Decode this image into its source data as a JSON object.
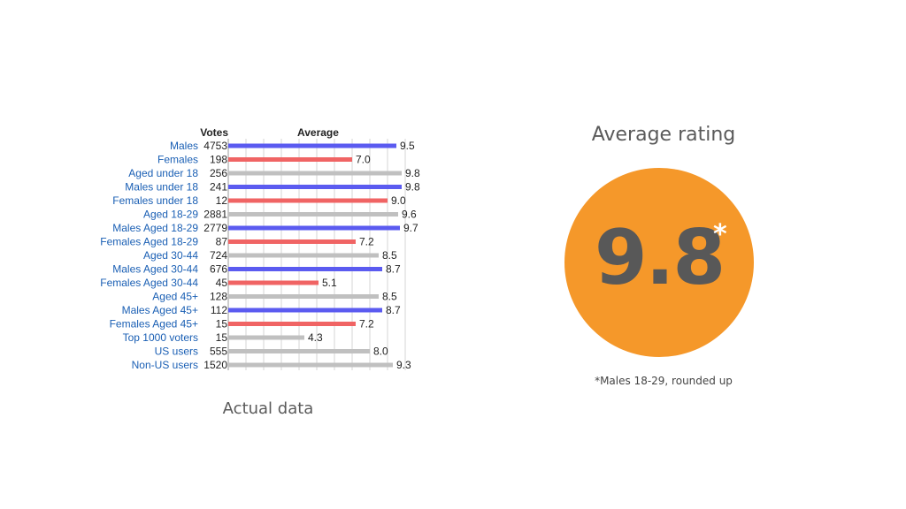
{
  "chart_data": {
    "type": "bar",
    "orientation": "horizontal",
    "headers": {
      "votes": "Votes",
      "average": "Average"
    },
    "categories": [
      "Males",
      "Females",
      "Aged under 18",
      "Males under 18",
      "Females under 18",
      "Aged 18-29",
      "Males Aged 18-29",
      "Females Aged 18-29",
      "Aged 30-44",
      "Males Aged 30-44",
      "Females Aged 30-44",
      "Aged 45+",
      "Males Aged 45+",
      "Females Aged 45+",
      "Top 1000 voters",
      "US users",
      "Non-US users"
    ],
    "votes": [
      "4753",
      "198",
      "256",
      "241",
      "12",
      "2881",
      "2779",
      "87",
      "724",
      "676",
      "45",
      "128",
      "112",
      "15",
      "15",
      "555",
      "1520"
    ],
    "values": [
      9.5,
      7.0,
      9.8,
      9.8,
      9.0,
      9.6,
      9.7,
      7.2,
      8.5,
      8.7,
      5.1,
      8.5,
      8.7,
      7.2,
      4.3,
      8.0,
      9.3
    ],
    "value_labels": [
      "9.5",
      "7.0",
      "9.8",
      "9.8",
      "9.0",
      "9.6",
      "9.7",
      "7.2",
      "8.5",
      "8.7",
      "5.1",
      "8.5",
      "8.7",
      "7.2",
      "4.3",
      "8.0",
      "9.3"
    ],
    "groups": [
      "male",
      "female",
      "all",
      "male",
      "female",
      "all",
      "male",
      "female",
      "all",
      "male",
      "female",
      "all",
      "male",
      "female",
      "all",
      "all",
      "all"
    ],
    "group_colors": {
      "male": "#5b5bf0",
      "female": "#f06464",
      "all": "#c0c0c0"
    },
    "xlim": [
      0,
      10
    ],
    "grid": true
  },
  "caption": "Actual data",
  "rating": {
    "title": "Average rating",
    "value": "9.8",
    "marker": "*",
    "footnote": "*Males 18-29, rounded up",
    "circle_color": "#f5982a"
  }
}
